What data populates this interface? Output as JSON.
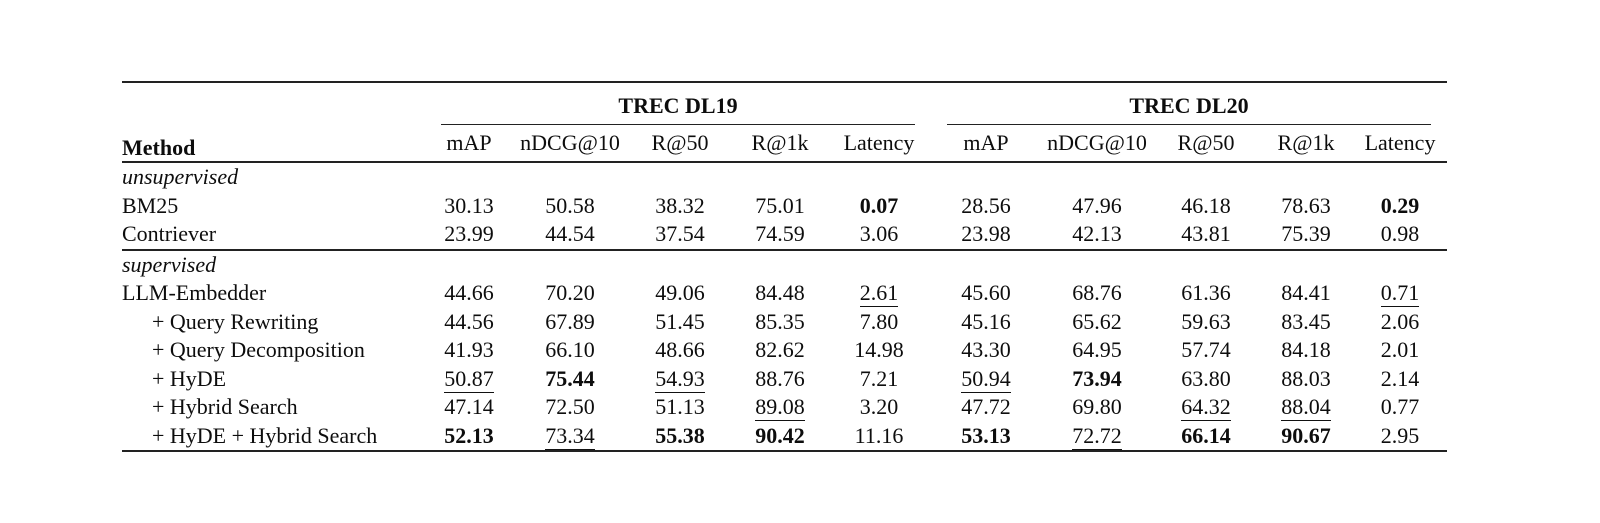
{
  "table": {
    "method_header": "Method",
    "groups": [
      {
        "label": "TREC DL19",
        "columns": [
          "mAP",
          "nDCG@10",
          "R@50",
          "R@1k",
          "Latency"
        ]
      },
      {
        "label": "TREC DL20",
        "columns": [
          "mAP",
          "nDCG@10",
          "R@50",
          "R@1k",
          "Latency"
        ]
      }
    ],
    "sections": [
      {
        "label": "unsupervised",
        "rows": [
          {
            "method": "BM25",
            "indent": false,
            "cells": [
              {
                "v": "30.13"
              },
              {
                "v": "50.58"
              },
              {
                "v": "38.32"
              },
              {
                "v": "75.01"
              },
              {
                "v": "0.07",
                "b": true
              },
              {
                "v": "28.56"
              },
              {
                "v": "47.96"
              },
              {
                "v": "46.18"
              },
              {
                "v": "78.63"
              },
              {
                "v": "0.29",
                "b": true
              }
            ]
          },
          {
            "method": "Contriever",
            "indent": false,
            "cells": [
              {
                "v": "23.99"
              },
              {
                "v": "44.54"
              },
              {
                "v": "37.54"
              },
              {
                "v": "74.59"
              },
              {
                "v": "3.06"
              },
              {
                "v": "23.98"
              },
              {
                "v": "42.13"
              },
              {
                "v": "43.81"
              },
              {
                "v": "75.39"
              },
              {
                "v": "0.98"
              }
            ]
          }
        ]
      },
      {
        "label": "supervised",
        "rows": [
          {
            "method": "LLM-Embedder",
            "indent": false,
            "cells": [
              {
                "v": "44.66"
              },
              {
                "v": "70.20"
              },
              {
                "v": "49.06"
              },
              {
                "v": "84.48"
              },
              {
                "v": "2.61",
                "u": true
              },
              {
                "v": "45.60"
              },
              {
                "v": "68.76"
              },
              {
                "v": "61.36"
              },
              {
                "v": "84.41"
              },
              {
                "v": "0.71",
                "u": true
              }
            ]
          },
          {
            "method": "+ Query Rewriting",
            "indent": true,
            "cells": [
              {
                "v": "44.56"
              },
              {
                "v": "67.89"
              },
              {
                "v": "51.45"
              },
              {
                "v": "85.35"
              },
              {
                "v": "7.80"
              },
              {
                "v": "45.16"
              },
              {
                "v": "65.62"
              },
              {
                "v": "59.63"
              },
              {
                "v": "83.45"
              },
              {
                "v": "2.06"
              }
            ]
          },
          {
            "method": "+ Query Decomposition",
            "indent": true,
            "cells": [
              {
                "v": "41.93"
              },
              {
                "v": "66.10"
              },
              {
                "v": "48.66"
              },
              {
                "v": "82.62"
              },
              {
                "v": "14.98"
              },
              {
                "v": "43.30"
              },
              {
                "v": "64.95"
              },
              {
                "v": "57.74"
              },
              {
                "v": "84.18"
              },
              {
                "v": "2.01"
              }
            ]
          },
          {
            "method": "+ HyDE",
            "indent": true,
            "cells": [
              {
                "v": "50.87",
                "u": true
              },
              {
                "v": "75.44",
                "b": true
              },
              {
                "v": "54.93",
                "u": true
              },
              {
                "v": "88.76"
              },
              {
                "v": "7.21"
              },
              {
                "v": "50.94",
                "u": true
              },
              {
                "v": "73.94",
                "b": true
              },
              {
                "v": "63.80"
              },
              {
                "v": "88.03"
              },
              {
                "v": "2.14"
              }
            ]
          },
          {
            "method": "+ Hybrid Search",
            "indent": true,
            "cells": [
              {
                "v": "47.14"
              },
              {
                "v": "72.50"
              },
              {
                "v": "51.13"
              },
              {
                "v": "89.08",
                "u": true
              },
              {
                "v": "3.20"
              },
              {
                "v": "47.72"
              },
              {
                "v": "69.80"
              },
              {
                "v": "64.32",
                "u": true
              },
              {
                "v": "88.04",
                "u": true
              },
              {
                "v": "0.77"
              }
            ]
          },
          {
            "method": "+ HyDE + Hybrid Search",
            "indent": true,
            "cells": [
              {
                "v": "52.13",
                "b": true
              },
              {
                "v": "73.34",
                "u": true
              },
              {
                "v": "55.38",
                "b": true
              },
              {
                "v": "90.42",
                "b": true
              },
              {
                "v": "11.16"
              },
              {
                "v": "53.13",
                "b": true
              },
              {
                "v": "72.72",
                "u": true
              },
              {
                "v": "66.14",
                "b": true
              },
              {
                "v": "90.67",
                "b": true
              },
              {
                "v": "2.95"
              }
            ]
          }
        ]
      }
    ]
  }
}
